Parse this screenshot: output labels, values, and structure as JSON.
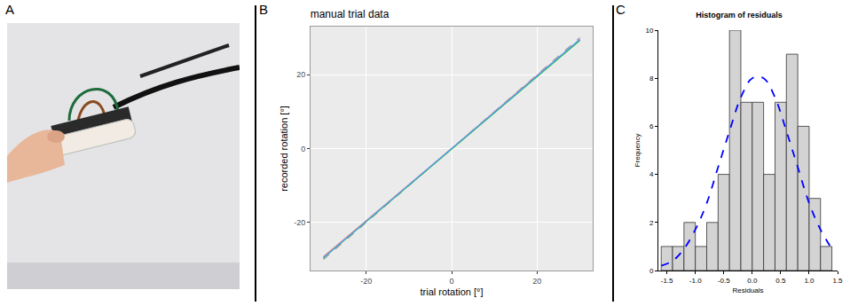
{
  "panels": [
    "A",
    "B",
    "C"
  ],
  "chart_data": [
    {
      "panel": "B",
      "type": "line",
      "title": "manual trial data",
      "x_label": "trial rotation [°]",
      "y_label": "recorded rotation [°]",
      "x": [
        -30,
        -20,
        -10,
        0,
        10,
        20,
        30
      ],
      "series": [
        {
          "color": "#999999",
          "line_style": "dashed",
          "values": [
            -30,
            -20,
            -10,
            0,
            10,
            20,
            30
          ]
        },
        {
          "color": "#F8766D",
          "line_style": "solid",
          "values": [
            -29.3,
            -19.6,
            -9.8,
            0,
            9.9,
            19.8,
            29.4
          ]
        },
        {
          "color": "#00BA38",
          "line_style": "solid",
          "values": [
            -29.6,
            -19.8,
            -9.9,
            0,
            9.8,
            19.6,
            29.3
          ]
        },
        {
          "color": "#619CFF",
          "line_style": "solid",
          "values": [
            -29.5,
            -19.7,
            -9.9,
            0,
            9.9,
            19.7,
            29.6
          ]
        }
      ],
      "xlim": [
        -33,
        33
      ],
      "ylim": [
        -33,
        33
      ],
      "xticks": [
        -20,
        0,
        20
      ],
      "yticks": [
        -20,
        0,
        20
      ],
      "grid": true
    },
    {
      "panel": "C",
      "type": "histogram",
      "title": "Histogram of residuals",
      "x_label": "Residuals",
      "y_label": "Frequency",
      "bins": [
        -1.6,
        -1.4,
        -1.2,
        -1.0,
        -0.8,
        -0.6,
        -0.4,
        -0.2,
        0.0,
        0.2,
        0.4,
        0.6,
        0.8,
        1.0,
        1.2,
        1.4
      ],
      "values": [
        1,
        1,
        2,
        1,
        2,
        4,
        10,
        7,
        7,
        4,
        7,
        9,
        6,
        3,
        1
      ],
      "color": "#D3D3D3",
      "curve": {
        "x": [
          -1.6,
          -1.4,
          -1.2,
          -1.0,
          -0.8,
          -0.6,
          -0.4,
          -0.2,
          0.0,
          0.2,
          0.4,
          0.6,
          0.8,
          1.0,
          1.2,
          1.4
        ],
        "values": [
          0.2,
          0.4,
          0.9,
          1.7,
          2.8,
          4.3,
          5.8,
          7.2,
          8.0,
          8.0,
          7.2,
          5.8,
          4.3,
          2.8,
          1.7,
          0.9
        ],
        "color": "#0000FF",
        "line_style": "dashed"
      },
      "xlim": [
        -1.65,
        1.5
      ],
      "ylim": [
        0,
        10
      ],
      "xticks": [
        -1.5,
        {
          "value": -1.0,
          "label": "-1.0"
        },
        -0.5,
        {
          "value": 0.0,
          "label": "0.0"
        },
        0.5,
        {
          "value": 1.0,
          "label": "1.0"
        },
        1.5
      ],
      "yticks": [
        0,
        2,
        4,
        6,
        8,
        10
      ],
      "grid": false
    }
  ]
}
